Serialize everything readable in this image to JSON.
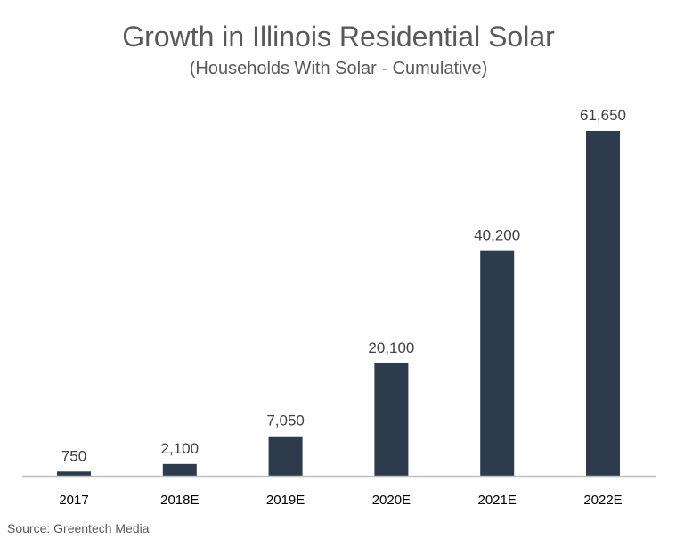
{
  "chart_data": {
    "type": "bar",
    "title": "Growth in Illinois Residential Solar",
    "subtitle": "(Households With Solar - Cumulative)",
    "categories": [
      "2017",
      "2018E",
      "2019E",
      "2020E",
      "2021E",
      "2022E"
    ],
    "values": [
      750,
      2100,
      7050,
      20100,
      40200,
      61650
    ],
    "data_labels": [
      "750",
      "2,100",
      "7,050",
      "20,100",
      "40,200",
      "61,650"
    ],
    "xlabel": "",
    "ylabel": "",
    "ylim": [
      0,
      61650
    ],
    "grid": false,
    "legend": "none",
    "bar_color": "#2d3b4c",
    "source": "Source: Greentech Media"
  }
}
